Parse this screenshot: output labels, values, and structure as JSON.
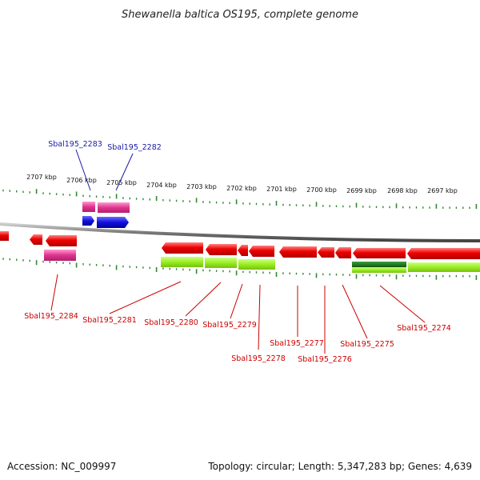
{
  "title": "Shewanella baltica OS195, complete genome",
  "footer": {
    "accession": "Accession: NC_009997",
    "summary": "Topology: circular; Length: 5,347,283 bp; Genes: 4,639"
  },
  "scale_labels": [
    "2707 kbp",
    "2706 kbp",
    "2705 kbp",
    "2704 kbp",
    "2703 kbp",
    "2702 kbp",
    "2701 kbp",
    "2700 kbp",
    "2699 kbp",
    "2698 kbp",
    "2697 kbp"
  ],
  "gene_labels": {
    "sbal_2283": "Sbal195_2283",
    "sbal_2282": "Sbal195_2282",
    "sbal_2284": "Sbal195_2284",
    "sbal_2281": "Sbal195_2281",
    "sbal_2280": "Sbal195_2280",
    "sbal_2279": "Sbal195_2279",
    "sbal_2278": "Sbal195_2278",
    "sbal_2277": "Sbal195_2277",
    "sbal_2276": "Sbal195_2276",
    "sbal_2275": "Sbal195_2275",
    "sbal_2274": "Sbal195_2274"
  },
  "colors": {
    "cds": "#ee0000",
    "rna_pink": "#e0338f",
    "rna_blue": "#1010dd",
    "feature_green": "#99ee22",
    "dark_green": "#1f7a1f",
    "tick_green": "#338833",
    "backbone": "#888888",
    "label_red": "#cc0000",
    "label_blue": "#1a1aa6"
  }
}
